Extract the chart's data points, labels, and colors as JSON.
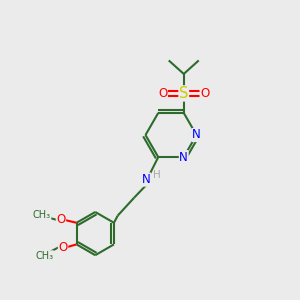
{
  "bg_color": "#ebebeb",
  "bond_color": "#2d6b2d",
  "line_width": 1.5,
  "atom_colors": {
    "N": "#0000ff",
    "O": "#ff0000",
    "S": "#cccc00",
    "H": "#aaaaaa",
    "C": "#2d6b2d"
  },
  "font_size": 8.5,
  "figsize": [
    3.0,
    3.0
  ],
  "dpi": 100
}
